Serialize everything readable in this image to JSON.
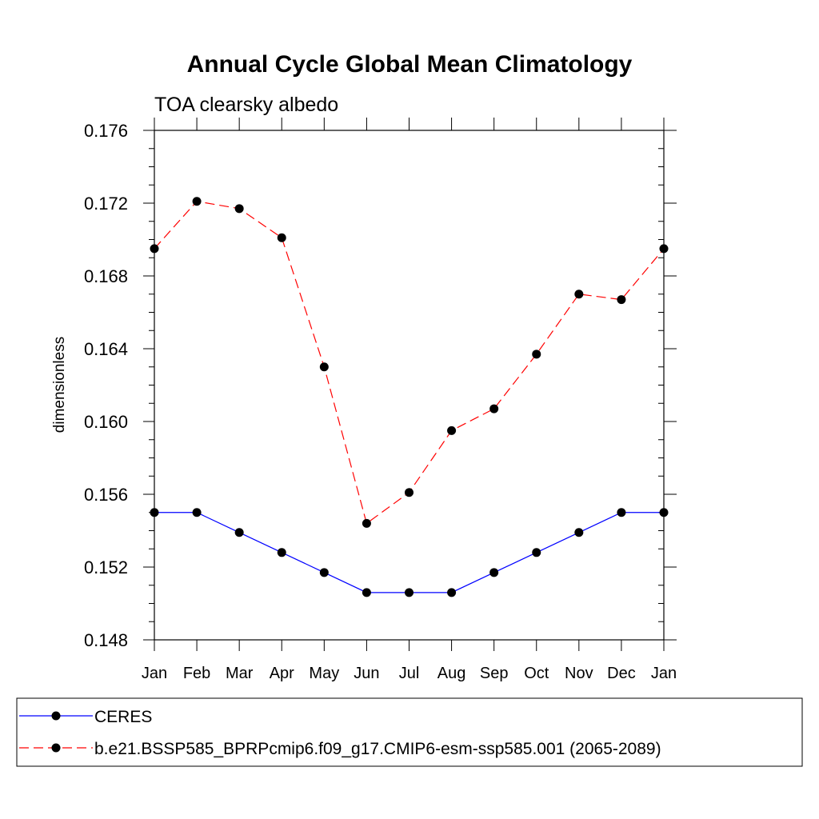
{
  "chart_data": {
    "type": "line",
    "title": "Annual Cycle Global Mean Climatology",
    "subtitle": "TOA clearsky albedo",
    "xlabel": "",
    "ylabel": "dimensionless",
    "categories": [
      "Jan",
      "Feb",
      "Mar",
      "Apr",
      "May",
      "Jun",
      "Jul",
      "Aug",
      "Sep",
      "Oct",
      "Nov",
      "Dec",
      "Jan"
    ],
    "ylim": [
      0.148,
      0.176
    ],
    "yticks": [
      "0.148",
      "0.152",
      "0.156",
      "0.160",
      "0.164",
      "0.168",
      "0.172",
      "0.176"
    ],
    "series": [
      {
        "name": "CERES",
        "color": "#0000ff",
        "dash": "solid",
        "values": [
          0.155,
          0.155,
          0.1539,
          0.1528,
          0.1517,
          0.1506,
          0.1506,
          0.1506,
          0.1517,
          0.1528,
          0.1539,
          0.155,
          0.155
        ]
      },
      {
        "name": "b.e21.BSSP585_BPRPcmip6.f09_g17.CMIP6-esm-ssp585.001 (2065-2089)",
        "color": "#ff0000",
        "dash": "dashed",
        "values": [
          0.1695,
          0.1721,
          0.1717,
          0.1701,
          0.163,
          0.1544,
          0.1561,
          0.1595,
          0.1607,
          0.1637,
          0.167,
          0.1667,
          0.1695
        ]
      }
    ],
    "legend_position": "bottom"
  }
}
